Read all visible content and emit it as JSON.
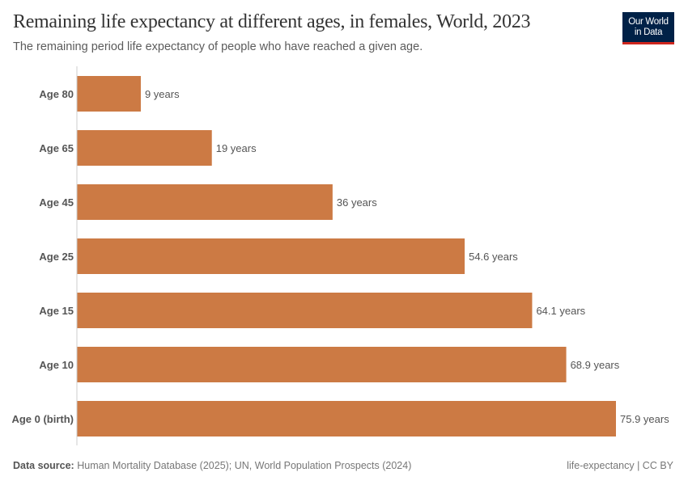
{
  "header": {
    "title": "Remaining life expectancy at different ages, in females, World, 2023",
    "subtitle": "The remaining period life expectancy of people who have reached a given age."
  },
  "logo": {
    "line1": "Our World",
    "line2": "in Data",
    "bg": "#002147",
    "accent": "#ce261e"
  },
  "chart_data": {
    "type": "bar",
    "orientation": "horizontal",
    "title": "Remaining life expectancy at different ages, in females, World, 2023",
    "subtitle": "The remaining period life expectancy of people who have reached a given age.",
    "categories": [
      "Age 80",
      "Age 65",
      "Age 45",
      "Age 25",
      "Age 15",
      "Age 10",
      "Age 0 (birth)"
    ],
    "values": [
      9,
      19,
      36,
      54.6,
      64.1,
      68.9,
      75.9
    ],
    "labels": [
      "9 years",
      "19 years",
      "36 years",
      "54.6 years",
      "64.1 years",
      "68.9 years",
      "75.9 years"
    ],
    "unit": "years",
    "xlim": [
      0,
      75.9
    ],
    "grid": false,
    "color": "#cc7a44"
  },
  "footer": {
    "source_label": "Data source:",
    "source": "Human Mortality Database (2025); UN, World Population Prospects (2024)",
    "license": "life-expectancy | CC BY"
  }
}
